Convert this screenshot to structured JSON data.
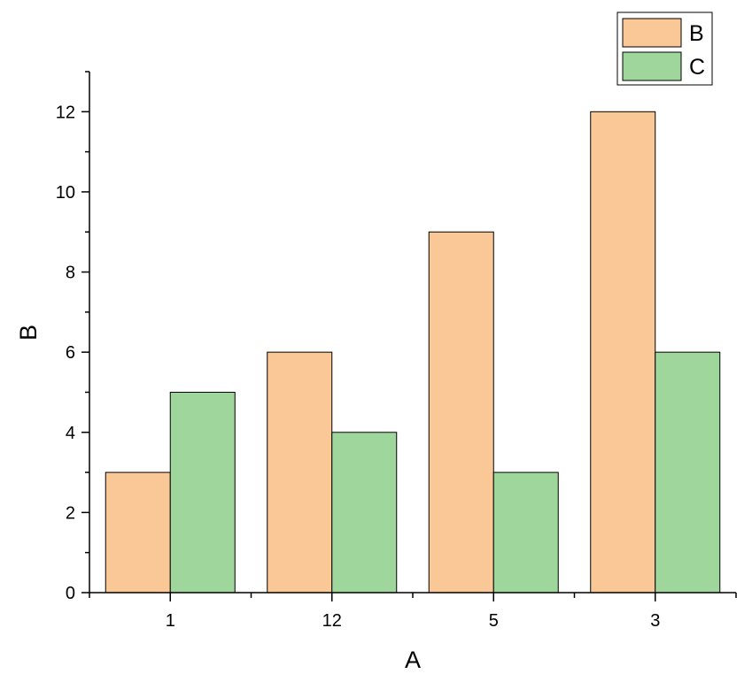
{
  "chart_data": {
    "type": "bar",
    "title": "",
    "xlabel": "A",
    "ylabel": "B",
    "categories": [
      "1",
      "12",
      "5",
      "3"
    ],
    "series": [
      {
        "name": "B",
        "values": [
          3,
          6,
          9,
          12
        ],
        "color": "#FAC896"
      },
      {
        "name": "C",
        "values": [
          5,
          4,
          3,
          6
        ],
        "color": "#9ED69B"
      }
    ],
    "ylim": [
      0,
      13
    ],
    "yticks": [
      "0",
      "2",
      "4",
      "6",
      "8",
      "10",
      "12"
    ],
    "grid": false,
    "legend_position": "top-right"
  }
}
